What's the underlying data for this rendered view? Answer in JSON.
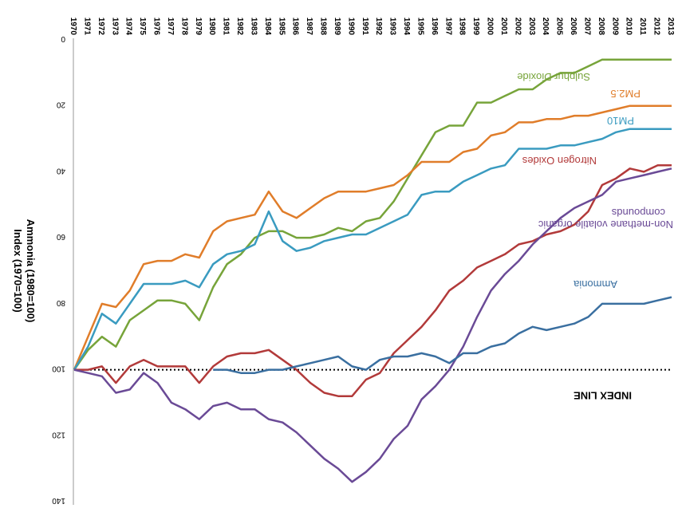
{
  "chart_data": {
    "type": "line",
    "ylabel_lines": [
      "Index (1970=100)",
      "Ammonia (1980=100)"
    ],
    "orientation": "rotated 180 degrees",
    "ylim": [
      0,
      140
    ],
    "yticks": [
      0,
      20,
      40,
      60,
      80,
      100,
      120,
      140
    ],
    "x": [
      1970,
      1971,
      1972,
      1973,
      1974,
      1975,
      1976,
      1977,
      1978,
      1979,
      1980,
      1981,
      1982,
      1983,
      1984,
      1985,
      1986,
      1987,
      1988,
      1989,
      1990,
      1991,
      1992,
      1993,
      1994,
      1995,
      1996,
      1997,
      1998,
      1999,
      2000,
      2001,
      2002,
      2003,
      2004,
      2005,
      2006,
      2007,
      2008,
      2009,
      2010,
      2011,
      2012,
      2013
    ],
    "index_line": {
      "label": "INDEX LINE",
      "value": 100,
      "style": "dotted",
      "color": "#000000"
    },
    "series": [
      {
        "name": "Sulphur Dioxide",
        "color": "#77a43a",
        "values": [
          100,
          94,
          90,
          93,
          85,
          82,
          79,
          79,
          80,
          85,
          75,
          68,
          65,
          60,
          58,
          58,
          60,
          60,
          59,
          57,
          58,
          55,
          54,
          49,
          42,
          35,
          28,
          26,
          26,
          19,
          19,
          17,
          15,
          15,
          12,
          10,
          10,
          8,
          6,
          6,
          6,
          6,
          6,
          6
        ]
      },
      {
        "name": "PM2.5",
        "color": "#e07d2a",
        "values": [
          100,
          90,
          80,
          81,
          76,
          68,
          67,
          67,
          65,
          66,
          58,
          55,
          54,
          53,
          46,
          52,
          54,
          51,
          48,
          46,
          46,
          46,
          45,
          44,
          41,
          37,
          37,
          37,
          34,
          33,
          29,
          28,
          25,
          25,
          24,
          24,
          23,
          23,
          22,
          21,
          20,
          20,
          20,
          20
        ]
      },
      {
        "name": "PM10",
        "color": "#3a9bc0",
        "values": [
          100,
          93,
          83,
          86,
          80,
          74,
          74,
          74,
          73,
          75,
          68,
          65,
          64,
          62,
          52,
          61,
          64,
          63,
          61,
          60,
          59,
          59,
          57,
          55,
          53,
          47,
          46,
          46,
          43,
          41,
          39,
          38,
          33,
          33,
          33,
          32,
          32,
          31,
          30,
          28,
          27,
          27,
          27,
          27
        ]
      },
      {
        "name": "Nitrogen Oxides",
        "color": "#b23a3a",
        "values": [
          100,
          100,
          99,
          104,
          99,
          97,
          99,
          99,
          99,
          104,
          99,
          96,
          95,
          95,
          94,
          97,
          100,
          104,
          107,
          108,
          108,
          103,
          101,
          95,
          91,
          87,
          82,
          76,
          73,
          69,
          67,
          65,
          62,
          61,
          59,
          58,
          56,
          52,
          44,
          42,
          39,
          40,
          38,
          38
        ]
      },
      {
        "name": "Non-methane volatile organic compounds",
        "color": "#6a4a96",
        "values": [
          100,
          101,
          102,
          107,
          106,
          101,
          104,
          110,
          112,
          115,
          111,
          110,
          112,
          112,
          115,
          116,
          119,
          123,
          127,
          130,
          134,
          131,
          127,
          121,
          117,
          109,
          105,
          100,
          93,
          84,
          76,
          71,
          67,
          62,
          58,
          54,
          51,
          49,
          47,
          43,
          42,
          41,
          40,
          39
        ]
      },
      {
        "name": "Ammonia",
        "color": "#3a6fa0",
        "start_year": 1980,
        "values": [
          null,
          null,
          null,
          null,
          null,
          null,
          null,
          null,
          null,
          null,
          100,
          100,
          101,
          101,
          100,
          100,
          99,
          98,
          97,
          96,
          99,
          100,
          97,
          96,
          96,
          95,
          96,
          98,
          95,
          95,
          93,
          92,
          89,
          87,
          88,
          87,
          86,
          84,
          80,
          80,
          80,
          80,
          79,
          78
        ]
      }
    ]
  }
}
